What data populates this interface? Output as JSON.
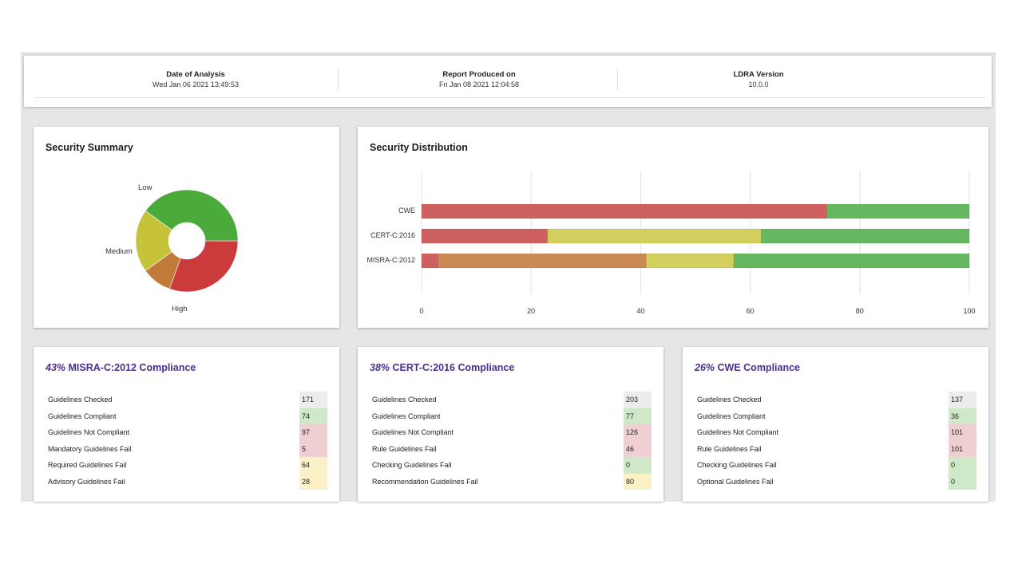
{
  "header": {
    "date_label": "Date of Analysis",
    "date_value": "Wed Jan 06 2021 13:49:53",
    "report_label": "Report Produced on",
    "report_value": "Fri Jan 08 2021 12:04:58",
    "version_label": "LDRA Version",
    "version_value": "10.0.0"
  },
  "summary": {
    "title": "Security Summary",
    "labels": {
      "low": "Low",
      "medium": "Medium",
      "high": "High"
    }
  },
  "distribution": {
    "title": "Security Distribution",
    "categories": [
      "CWE",
      "CERT-C:2016",
      "MISRA-C:2012"
    ],
    "ticks": [
      "0",
      "20",
      "40",
      "60",
      "80",
      "100"
    ]
  },
  "chart_data": [
    {
      "type": "pie",
      "title": "Security Summary",
      "labels": [
        "High",
        "Medium",
        "Low",
        ""
      ],
      "values": [
        29,
        9,
        19,
        38
      ],
      "colors": [
        "#cc3b3b",
        "#c07a3a",
        "#c6c23a",
        "#4aaa3a"
      ],
      "hole": true
    },
    {
      "type": "bar",
      "orientation": "horizontal",
      "stacked": true,
      "title": "Security Distribution",
      "categories": [
        "CWE",
        "CERT-C:2016",
        "MISRA-C:2012"
      ],
      "xlim": [
        0,
        100
      ],
      "grid": true,
      "series": [
        {
          "values": [
            74,
            23,
            3
          ],
          "color": "#cf6060"
        },
        {
          "values": [
            0,
            0,
            38
          ],
          "color": "#cc8a55"
        },
        {
          "values": [
            0,
            39,
            16
          ],
          "color": "#d3cf5e"
        },
        {
          "values": [
            26,
            38,
            43
          ],
          "color": "#66b860"
        }
      ]
    }
  ],
  "compliance": [
    {
      "pct": "43%",
      "title": "MISRA-C:2012 Compliance",
      "rows": [
        {
          "label": "Guidelines Checked",
          "value": "171",
          "tone": "grey"
        },
        {
          "label": "Guidelines Compliant",
          "value": "74",
          "tone": "green"
        },
        {
          "label": "Guidelines Not Compliant",
          "value": "97",
          "tone": "red"
        },
        {
          "label": "Mandatory Guidelines Fail",
          "value": "5",
          "tone": "red"
        },
        {
          "label": "Required Guidelines Fail",
          "value": "64",
          "tone": "yellow"
        },
        {
          "label": "Advisory Guidelines Fail",
          "value": "28",
          "tone": "yellow"
        }
      ]
    },
    {
      "pct": "38%",
      "title": "CERT-C:2016 Compliance",
      "rows": [
        {
          "label": "Guidelines Checked",
          "value": "203",
          "tone": "grey"
        },
        {
          "label": "Guidelines Compliant",
          "value": "77",
          "tone": "green"
        },
        {
          "label": "Guidelines Not Compliant",
          "value": "126",
          "tone": "red"
        },
        {
          "label": "Rule Guidelines Fail",
          "value": "46",
          "tone": "red"
        },
        {
          "label": "Checking Guidelines Fail",
          "value": "0",
          "tone": "green"
        },
        {
          "label": "Recommendation Guidelines Fail",
          "value": "80",
          "tone": "yellow"
        }
      ]
    },
    {
      "pct": "26%",
      "title": "CWE Compliance",
      "rows": [
        {
          "label": "Guidelines Checked",
          "value": "137",
          "tone": "grey"
        },
        {
          "label": "Guidelines Compliant",
          "value": "36",
          "tone": "green"
        },
        {
          "label": "Guidelines Not Compliant",
          "value": "101",
          "tone": "red"
        },
        {
          "label": "Rule Guidelines Fail",
          "value": "101",
          "tone": "red"
        },
        {
          "label": "Checking Guidelines Fail",
          "value": "0",
          "tone": "green"
        },
        {
          "label": "Optional Guidelines Fail",
          "value": "0",
          "tone": "green"
        }
      ]
    }
  ]
}
